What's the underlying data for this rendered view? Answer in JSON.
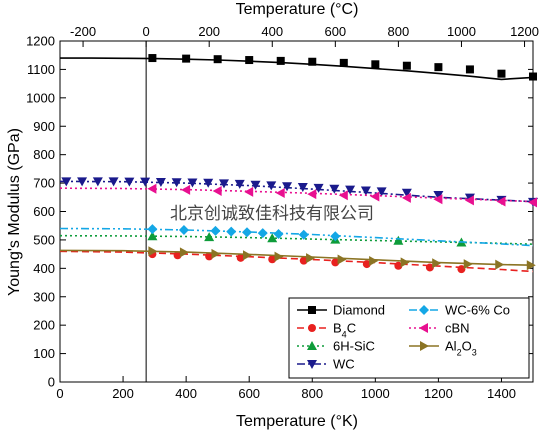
{
  "watermark": "北京创诚致佳科技有限公司",
  "chart_data": {
    "type": "line",
    "title": "",
    "xlabel": "Temperature (°K)",
    "ylabel": "Young's Modulus (GPa)",
    "x2label": "Temperature (°C)",
    "xlim": [
      0,
      1500
    ],
    "ylim": [
      0,
      1200
    ],
    "x2lim": [
      -273.15,
      1226.85
    ],
    "xticks": [
      0,
      200,
      400,
      600,
      800,
      1000,
      1200,
      1400
    ],
    "yticks": [
      0,
      100,
      200,
      300,
      400,
      500,
      600,
      700,
      800,
      900,
      1000,
      1100,
      1200
    ],
    "x2ticks": [
      -200,
      0,
      200,
      400,
      600,
      800,
      1000,
      1200
    ],
    "reference_line_x": 273.15,
    "legend_placement": "bottom-right",
    "grid": false,
    "series": [
      {
        "name": "Diamond",
        "color": "#000000",
        "marker": "square",
        "dash": "solid",
        "x": [
          0,
          100,
          200,
          300,
          400,
          500,
          600,
          700,
          800,
          900,
          1000,
          1100,
          1200,
          1300,
          1400,
          1500
        ],
        "y": [
          1140,
          1140,
          1139,
          1138,
          1136,
          1133,
          1129,
          1124,
          1118,
          1111,
          1103,
          1095,
          1086,
          1076,
          1065,
          1072
        ],
        "markers_x": [
          293,
          400,
          500,
          600,
          700,
          800,
          900,
          1000,
          1100,
          1200,
          1300,
          1400,
          1500
        ],
        "markers_y": [
          1140,
          1138,
          1136,
          1133,
          1130,
          1127,
          1123,
          1118,
          1113,
          1108,
          1100,
          1085,
          1075
        ]
      },
      {
        "name": "B4C",
        "color": "#e8211f",
        "marker": "circle",
        "dash": "dash",
        "x": [
          0,
          200,
          400,
          600,
          800,
          1000,
          1200,
          1400,
          1500
        ],
        "y": [
          460,
          457,
          450,
          441,
          431,
          420,
          408,
          396,
          389
        ],
        "markers_x": [
          293,
          373,
          473,
          573,
          673,
          773,
          873,
          973,
          1073,
          1173,
          1273
        ],
        "markers_y": [
          450,
          446,
          442,
          437,
          432,
          427,
          421,
          415,
          409,
          403,
          397
        ]
      },
      {
        "name": "6H-SiC",
        "color": "#0e9c3a",
        "marker": "triangle-up",
        "dash": "dot",
        "x": [
          0,
          200,
          400,
          600,
          800,
          1000,
          1200,
          1400,
          1500
        ],
        "y": [
          515,
          514,
          512,
          508,
          503,
          498,
          493,
          488,
          485
        ],
        "markers_x": [
          293,
          473,
          673,
          873,
          1073,
          1273
        ],
        "markers_y": [
          513,
          510,
          506,
          501,
          497,
          491
        ]
      },
      {
        "name": "WC",
        "color": "#1a1a8c",
        "marker": "triangle-down",
        "dash": "dashdot",
        "x": [
          0,
          200,
          400,
          600,
          800,
          1000,
          1200,
          1400,
          1500
        ],
        "y": [
          706,
          705,
          700,
          691,
          679,
          665,
          650,
          640,
          635
        ],
        "markers_x": [
          20,
          70,
          120,
          170,
          220,
          270,
          320,
          370,
          420,
          470,
          520,
          570,
          620,
          670,
          720,
          770,
          820,
          870,
          920,
          970,
          1020,
          1100,
          1200,
          1300,
          1400,
          1500
        ],
        "markers_y": [
          706,
          706,
          706,
          706,
          705,
          705,
          704,
          703,
          702,
          701,
          699,
          697,
          694,
          692,
          689,
          686,
          683,
          680,
          677,
          674,
          671,
          666,
          658,
          649,
          641,
          634
        ]
      },
      {
        "name": "WC-6% Co",
        "color": "#14a7e6",
        "marker": "diamond",
        "dash": "dashdotdot",
        "x": [
          0,
          200,
          400,
          600,
          800,
          1000,
          1200,
          1400,
          1500
        ],
        "y": [
          540,
          539,
          535,
          528,
          519,
          508,
          497,
          486,
          480
        ],
        "markers_x": [
          293,
          393,
          493,
          543,
          593,
          643,
          693,
          773,
          873
        ],
        "markers_y": [
          538,
          535,
          532,
          529,
          527,
          524,
          521,
          518,
          513
        ]
      },
      {
        "name": "cBN",
        "color": "#e81090",
        "marker": "triangle-left",
        "dash": "dot",
        "x": [
          0,
          200,
          400,
          600,
          800,
          1000,
          1200,
          1400,
          1500
        ],
        "y": [
          682,
          681,
          677,
          671,
          664,
          656,
          647,
          639,
          635
        ],
        "markers_x": [
          293,
          400,
          500,
          600,
          700,
          800,
          900,
          1000,
          1100,
          1200,
          1300,
          1400,
          1500
        ],
        "markers_y": [
          680,
          676,
          672,
          669,
          665,
          661,
          657,
          653,
          648,
          643,
          639,
          635,
          632
        ]
      },
      {
        "name": "Al2O3",
        "color": "#8b7424",
        "marker": "triangle-right",
        "dash": "solid",
        "x": [
          0,
          200,
          400,
          600,
          800,
          1000,
          1200,
          1400,
          1500
        ],
        "y": [
          463,
          462,
          457,
          449,
          440,
          430,
          420,
          413,
          411
        ],
        "markers_x": [
          293,
          393,
          493,
          593,
          693,
          793,
          893,
          993,
          1093,
          1193,
          1293,
          1393,
          1493
        ],
        "markers_y": [
          460,
          456,
          451,
          446,
          441,
          436,
          431,
          426,
          421,
          418,
          415,
          413,
          411
        ]
      }
    ],
    "legend": {
      "col1": [
        {
          "series": "Diamond",
          "label_main": "Diamond",
          "label_sub": "",
          "label_tail": ""
        },
        {
          "series": "B4C",
          "label_main": "B",
          "label_sub": "4",
          "label_tail": "C"
        },
        {
          "series": "6H-SiC",
          "label_main": "6H-SiC",
          "label_sub": "",
          "label_tail": ""
        },
        {
          "series": "WC",
          "label_main": "WC",
          "label_sub": "",
          "label_tail": ""
        }
      ],
      "col2": [
        {
          "series": "WC-6% Co",
          "label_main": "WC-6% Co",
          "label_sub": "",
          "label_tail": ""
        },
        {
          "series": "cBN",
          "label_main": "cBN",
          "label_sub": "",
          "label_tail": ""
        },
        {
          "series": "Al2O3",
          "label_main": "Al",
          "label_sub": "2",
          "label_tail": "O",
          "label_sub2": "3"
        }
      ]
    }
  }
}
